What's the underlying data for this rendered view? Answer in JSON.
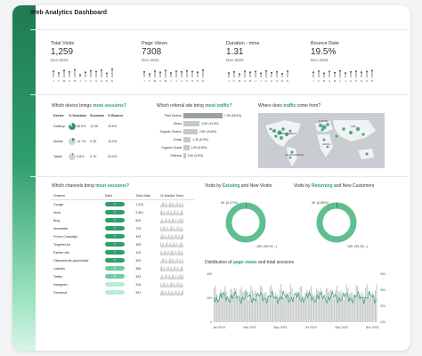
{
  "dashboard": {
    "title": "Web Analytics Dashboard"
  },
  "kpis": [
    {
      "label": "Total Visits",
      "value": "1,259",
      "period": "Dec-2023"
    },
    {
      "label": "Page Views",
      "value": "7308",
      "period": "Dec-2023"
    },
    {
      "label": "Duration - mins",
      "value": "1.31",
      "period": "Dec-2023"
    },
    {
      "label": "Bounce Rate",
      "value": "19.5%",
      "period": "Dec-2023"
    }
  ],
  "kpi_months": [
    "J",
    "F",
    "M",
    "A",
    "M",
    "J",
    "J",
    "A",
    "S",
    "O",
    "N",
    "D"
  ],
  "device_section": {
    "prefix": "Which device brings ",
    "highlight": "most sessions?",
    "headers": [
      "Device",
      "% Sessions",
      "Sessions",
      "% Bounce"
    ],
    "rows": [
      {
        "device": "Desktop",
        "pct": "80.5%",
        "sessions": "12.3K",
        "bounce": "19.5%",
        "share": 0.805
      },
      {
        "device": "Mobile",
        "pct": "14.7%",
        "sessions": "2.2K",
        "bounce": "19.0%",
        "share": 0.147
      },
      {
        "device": "Tablet",
        "pct": "4.8%",
        "sessions": "0.7K",
        "bounce": "24.0%",
        "share": 0.048
      }
    ]
  },
  "referral_section": {
    "prefix": "Which referral site bring ",
    "highlight": "most traffic?",
    "rows": [
      {
        "label": "Paid Search",
        "value": "7,0K (45.8%)",
        "share": 1.0
      },
      {
        "label": "Direct",
        "value": "3,0K (19.5%)",
        "share": 0.42
      },
      {
        "label": "Organic Search",
        "value": "2,6K (16.8%)",
        "share": 0.36
      },
      {
        "label": "Email",
        "value": "1,3K (8.5%)",
        "share": 0.19
      },
      {
        "label": "Organic Social",
        "value": "1,0K (6.8%)",
        "share": 0.15
      },
      {
        "label": "Referral",
        "value": "0,4K (2.6%)",
        "share": 0.06
      }
    ]
  },
  "map_section": {
    "prefix": "Where does ",
    "highlight": "traffic",
    "suffix": " come from?",
    "labels": [
      "NORTH AMERICA",
      "EUROPE",
      "ASIA",
      "SOUTH AMERICA",
      "AFRICA"
    ]
  },
  "channel_section": {
    "prefix": "Which channels bring ",
    "highlight": "most sessions?",
    "headers": [
      "Channel",
      "Rank",
      "Total Visits",
      "12 Months Trend"
    ],
    "rows": [
      {
        "name": "Google",
        "rank": "1",
        "visits": "7,210"
      },
      {
        "name": "None",
        "rank": "2",
        "visits": "2,651"
      },
      {
        "name": "Bing",
        "rank": "3",
        "visits": "803"
      },
      {
        "name": "Newsletter",
        "rank": "4",
        "visits": "729"
      },
      {
        "name": "Promo Campaign",
        "rank": "5",
        "visits": "494"
      },
      {
        "name": "Targeted Ad",
        "rank": "6",
        "visits": "459"
      },
      {
        "name": "Partner site",
        "rank": "7",
        "visits": "410"
      },
      {
        "name": "Otherwebsite placeholder",
        "rank": "8",
        "visits": "390"
      },
      {
        "name": "LinkedIn",
        "rank": "9",
        "visits": "385"
      },
      {
        "name": "Twitter",
        "rank": "10",
        "visits": "332"
      },
      {
        "name": "Instagram",
        "rank": "11",
        "visits": "316"
      },
      {
        "name": "Facebook",
        "rank": "12",
        "visits": "267"
      }
    ]
  },
  "existing_visitors": {
    "prefix": "Visits by ",
    "highlight": "Existing",
    "suffix": " and New Visitor",
    "small_label": "0K (0.47%)",
    "large_label": "15K (99.53...)",
    "small_share": 0.0047
  },
  "returning_customers": {
    "prefix": "Visits by ",
    "highlight": "Returning",
    "suffix": " and New Customers",
    "small_label": "0K (0.65%)",
    "large_label": "15K (99.35...)",
    "small_share": 0.0065
  },
  "distribution": {
    "prefix": "Distribution of ",
    "highlight": "page views",
    "suffix": " and total sessions",
    "x_ticks": [
      "Jan 2023",
      "Mar 2023",
      "May 2023",
      "Jul 2023",
      "Sep 2023",
      "Nov 2023"
    ],
    "y_left": [
      "400",
      "200",
      "0"
    ],
    "y_right": [
      "400",
      "300",
      "200",
      "100"
    ]
  },
  "colors": {
    "accent": "#2f9e6d",
    "accent_light": "#9de3c0"
  },
  "chart_data": [
    {
      "type": "line",
      "title": "Total Visits",
      "x": [
        "J",
        "F",
        "M",
        "A",
        "M",
        "J",
        "J",
        "A",
        "S",
        "O",
        "N",
        "D"
      ],
      "values": [
        60,
        55,
        62,
        58,
        64,
        50,
        57,
        61,
        59,
        63,
        54,
        66
      ]
    },
    {
      "type": "line",
      "title": "Page Views",
      "x": [
        "J",
        "F",
        "M",
        "A",
        "M",
        "J",
        "J",
        "A",
        "S",
        "O",
        "N",
        "D"
      ],
      "values": [
        58,
        52,
        60,
        57,
        62,
        55,
        60,
        58,
        61,
        59,
        57,
        63
      ]
    },
    {
      "type": "line",
      "title": "Duration - mins",
      "x": [
        "J",
        "F",
        "M",
        "A",
        "M",
        "J",
        "J",
        "A",
        "S",
        "O",
        "N",
        "D"
      ],
      "values": [
        55,
        58,
        52,
        60,
        57,
        59,
        54,
        61,
        56,
        58,
        53,
        60
      ]
    },
    {
      "type": "line",
      "title": "Bounce Rate",
      "x": [
        "J",
        "F",
        "M",
        "A",
        "M",
        "J",
        "J",
        "A",
        "S",
        "O",
        "N",
        "D"
      ],
      "values": [
        57,
        60,
        54,
        59,
        56,
        61,
        55,
        58,
        60,
        57,
        59,
        62
      ]
    },
    {
      "type": "pie",
      "title": "Visits by Existing and New Visitor",
      "values": [
        0.47,
        99.53
      ]
    },
    {
      "type": "pie",
      "title": "Visits by Returning and New Customers",
      "values": [
        0.65,
        99.35
      ]
    },
    {
      "type": "bar",
      "title": "Which referral site bring most traffic?",
      "categories": [
        "Paid Search",
        "Direct",
        "Organic Search",
        "Email",
        "Organic Social",
        "Referral"
      ],
      "values": [
        45.8,
        19.5,
        16.8,
        8.5,
        6.8,
        2.6
      ]
    }
  ]
}
